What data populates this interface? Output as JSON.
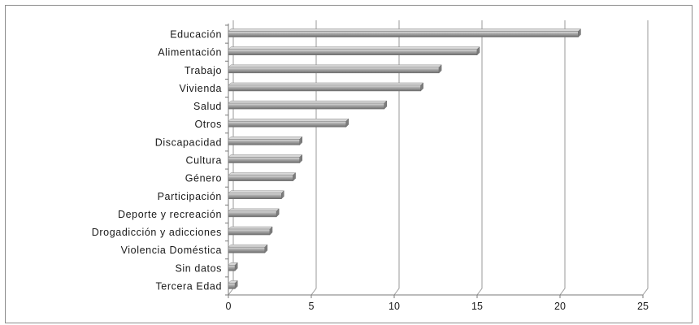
{
  "chart_data": {
    "type": "bar",
    "orientation": "horizontal",
    "categories": [
      "Educación",
      "Alimentación",
      "Trabajo",
      "Vivienda",
      "Salud",
      "Otros",
      "Discapacidad",
      "Cultura",
      "Género",
      "Participación",
      "Deporte y recreación",
      "Drogadicción y adicciones",
      "Violencia Doméstica",
      "Sin datos",
      "Tercera Edad"
    ],
    "values": [
      21.1,
      15.0,
      12.7,
      11.6,
      9.4,
      7.1,
      4.3,
      4.3,
      3.9,
      3.2,
      2.9,
      2.5,
      2.2,
      0.4,
      0.4
    ],
    "xlim": [
      0,
      25
    ],
    "x_ticks": [
      "0",
      "5",
      "10",
      "15",
      "20",
      "25"
    ],
    "grid": true,
    "bar_color": "#8a8a8a",
    "bar_highlight": "#d9d9d9",
    "gridline_color": "#9a9a9a",
    "title": "",
    "xlabel": "",
    "ylabel": ""
  }
}
